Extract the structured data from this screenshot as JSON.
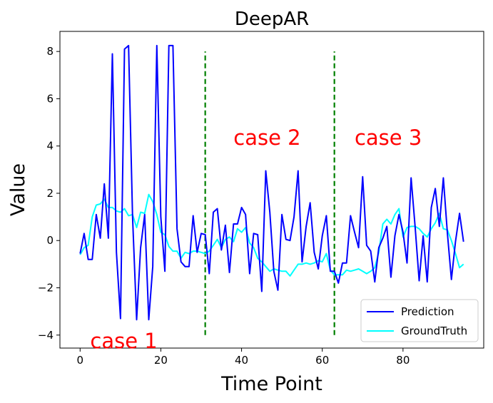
{
  "chart_data": {
    "type": "line",
    "title": "DeepAR",
    "xlabel": "Time Point",
    "ylabel": "Value",
    "xlim": [
      -5,
      100
    ],
    "ylim": [
      -4.55,
      8.85
    ],
    "xticks": [
      0,
      20,
      40,
      60,
      80
    ],
    "yticks": [
      -4,
      -2,
      0,
      2,
      4,
      6,
      8
    ],
    "grid": false,
    "legend_position": "lower-right",
    "colors": {
      "prediction": "#0000ff",
      "groundtruth": "#00ffff",
      "divider": "#008000",
      "annotation": "#ff0000"
    },
    "series": [
      {
        "name": "Prediction",
        "key": "prediction",
        "x": [
          0,
          1,
          2,
          3,
          4,
          5,
          6,
          7,
          8,
          9,
          10,
          11,
          12,
          13,
          14,
          15,
          16,
          17,
          18,
          19,
          20,
          21,
          22,
          23,
          24,
          25,
          26,
          27,
          28,
          29,
          30,
          31,
          32,
          33,
          34,
          35,
          36,
          37,
          38,
          39,
          40,
          41,
          42,
          43,
          44,
          45,
          46,
          47,
          48,
          49,
          50,
          51,
          52,
          53,
          54,
          55,
          56,
          57,
          58,
          59,
          60,
          61,
          62,
          63,
          64,
          65,
          66,
          67,
          68,
          69,
          70,
          71,
          72,
          73,
          74,
          75,
          76,
          77,
          78,
          79,
          80,
          81,
          82,
          83,
          84,
          85,
          86,
          87,
          88,
          89,
          90,
          91,
          92,
          93,
          94,
          95
        ],
        "values": [
          -0.55,
          0.3,
          -0.8,
          -0.8,
          1.1,
          0.1,
          2.4,
          0.1,
          7.9,
          -0.5,
          -3.3,
          8.1,
          8.25,
          1.0,
          -3.35,
          -0.3,
          1.1,
          -3.35,
          -1.1,
          8.25,
          1.0,
          -1.3,
          8.25,
          8.25,
          0.5,
          -0.9,
          -1.1,
          -1.1,
          1.05,
          -0.5,
          0.3,
          0.25,
          -1.4,
          1.2,
          1.35,
          -0.4,
          0.65,
          -1.35,
          0.7,
          0.7,
          1.4,
          1.1,
          -1.4,
          0.3,
          0.25,
          -2.15,
          2.95,
          1.2,
          -1.3,
          -2.1,
          1.1,
          0.05,
          0.0,
          1.0,
          2.95,
          -0.9,
          0.6,
          1.6,
          -0.5,
          -1.2,
          0.2,
          1.05,
          -1.3,
          -1.3,
          -1.8,
          -0.95,
          -0.95,
          1.05,
          0.35,
          -0.3,
          2.7,
          -0.2,
          -0.45,
          -1.75,
          -0.3,
          0.1,
          0.6,
          -1.55,
          0.2,
          1.1,
          0.35,
          -0.95,
          2.65,
          0.6,
          -1.7,
          0.2,
          -1.75,
          1.4,
          2.2,
          0.6,
          2.65,
          0.3,
          -1.65,
          -0.05,
          1.15,
          -0.05
        ]
      },
      {
        "name": "GroundTruth",
        "key": "groundtruth",
        "x": [
          0,
          1,
          2,
          3,
          4,
          5,
          6,
          7,
          8,
          9,
          10,
          11,
          12,
          13,
          14,
          15,
          16,
          17,
          18,
          19,
          20,
          21,
          22,
          23,
          24,
          25,
          26,
          27,
          28,
          29,
          30,
          31,
          32,
          33,
          34,
          35,
          36,
          37,
          38,
          39,
          40,
          41,
          42,
          43,
          44,
          45,
          46,
          47,
          48,
          49,
          50,
          51,
          52,
          53,
          54,
          55,
          56,
          57,
          58,
          59,
          60,
          61,
          62,
          63,
          64,
          65,
          66,
          67,
          68,
          69,
          70,
          71,
          72,
          73,
          74,
          75,
          76,
          77,
          78,
          79,
          80,
          81,
          82,
          83,
          84,
          85,
          86,
          87,
          88,
          89,
          90,
          91,
          92,
          93,
          94,
          95
        ],
        "values": [
          -0.6,
          -0.3,
          -0.2,
          1.0,
          1.5,
          1.55,
          1.75,
          1.4,
          1.4,
          1.25,
          1.2,
          1.35,
          1.05,
          1.1,
          0.55,
          1.2,
          1.15,
          1.95,
          1.65,
          1.1,
          0.35,
          0.25,
          -0.25,
          -0.45,
          -0.45,
          -0.75,
          -0.5,
          -0.55,
          -0.45,
          -0.45,
          -0.5,
          -0.55,
          -0.45,
          -0.2,
          0.05,
          -0.3,
          0.05,
          0.15,
          -0.05,
          0.5,
          0.35,
          0.55,
          -0.1,
          -0.3,
          -0.75,
          -0.9,
          -1.1,
          -1.3,
          -1.2,
          -1.25,
          -1.3,
          -1.3,
          -1.5,
          -1.25,
          -1.0,
          -1.0,
          -0.95,
          -1.0,
          -0.95,
          -0.85,
          -0.9,
          -0.55,
          -1.25,
          -1.45,
          -1.45,
          -1.45,
          -1.25,
          -1.3,
          -1.25,
          -1.2,
          -1.3,
          -1.4,
          -1.3,
          -1.15,
          -0.5,
          0.7,
          0.9,
          0.7,
          1.1,
          1.35,
          0.15,
          0.55,
          0.6,
          0.6,
          0.5,
          0.3,
          0.15,
          0.5,
          0.75,
          1.15,
          0.5,
          0.45,
          0.0,
          -0.55,
          -1.15,
          -1.0
        ]
      }
    ],
    "dividers": [
      {
        "x": 31,
        "y_from": -4,
        "y_to": 8
      },
      {
        "x": 63,
        "y_from": -4,
        "y_to": 8
      }
    ],
    "annotations": [
      {
        "text": "case 1",
        "x": 2.5,
        "y": -4.55
      },
      {
        "text": "case 2",
        "x": 38,
        "y": 4.05
      },
      {
        "text": "case 3",
        "x": 68,
        "y": 4.05
      }
    ]
  }
}
